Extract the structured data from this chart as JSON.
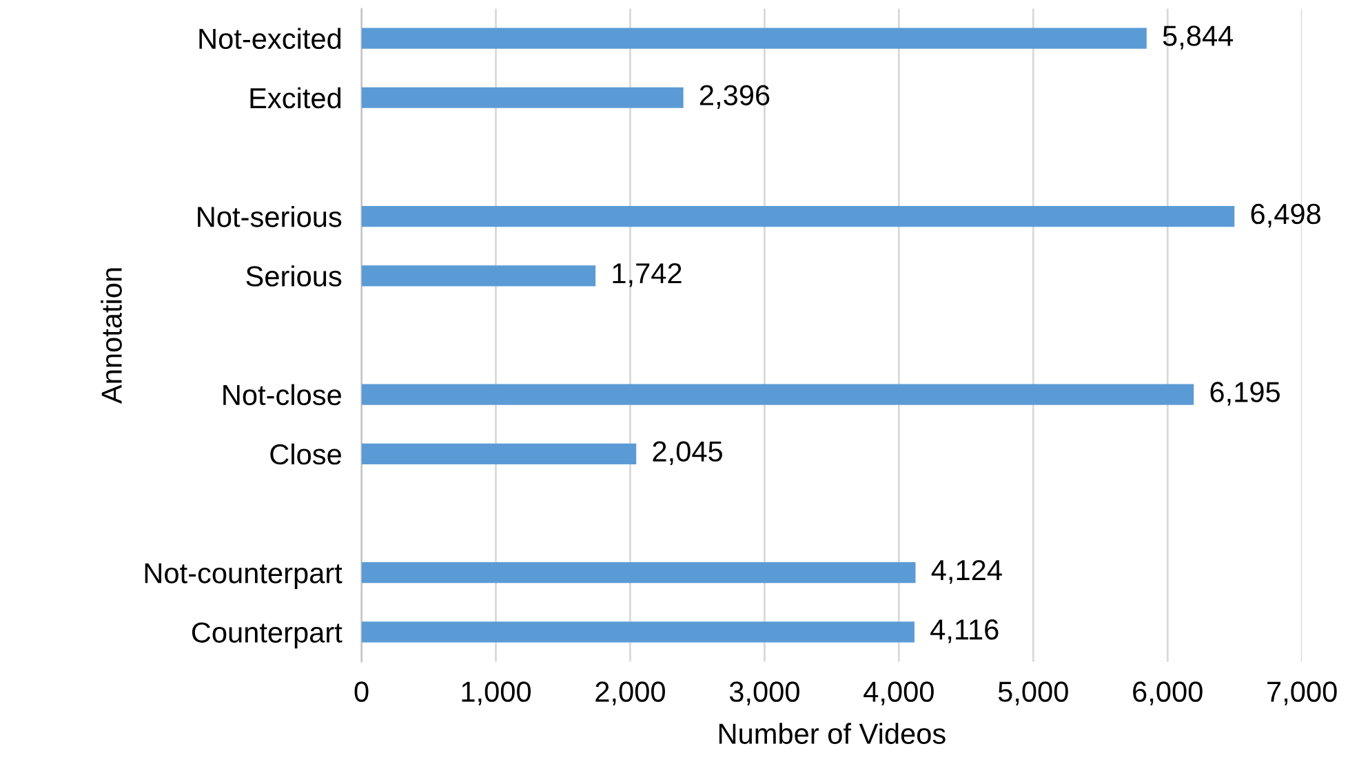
{
  "chart_data": {
    "type": "bar",
    "orientation": "horizontal",
    "xlabel": "Number of Videos",
    "ylabel": "Annotation",
    "categories": [
      "Not-excited",
      "Excited",
      null,
      "Not-serious",
      "Serious",
      null,
      "Not-close",
      "Close",
      null,
      "Not-counterpart",
      "Counterpart"
    ],
    "values": [
      5844,
      2396,
      null,
      6498,
      1742,
      null,
      6195,
      2045,
      null,
      4124,
      4116
    ],
    "value_labels": [
      "5,844",
      "2,396",
      null,
      "6,498",
      "1,742",
      null,
      "6,195",
      "2,045",
      null,
      "4,124",
      "4,116"
    ],
    "color": "#5b9bd5",
    "xlim": [
      0,
      7000
    ],
    "xticks": [
      0,
      {
        "value": 1000,
        "label": "1,000"
      },
      {
        "value": 2000,
        "label": "2,000"
      },
      {
        "value": 3000,
        "label": "3,000"
      },
      {
        "value": 4000,
        "label": "4,000"
      },
      {
        "value": 5000,
        "label": "5,000"
      },
      {
        "value": 6000,
        "label": "6,000"
      },
      {
        "value": 7000,
        "label": "7,000"
      }
    ],
    "grid": "x"
  }
}
